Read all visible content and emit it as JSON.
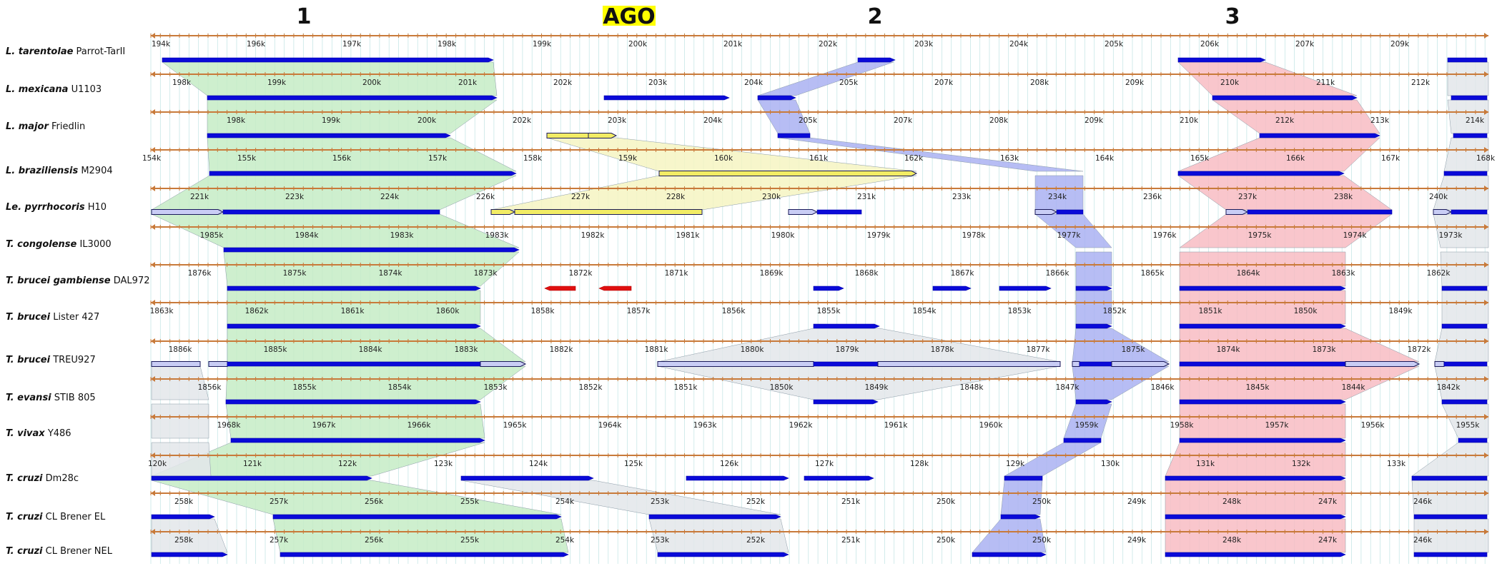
{
  "region_labels": [
    {
      "text": "1",
      "highlight": false
    },
    {
      "text": "AGO",
      "highlight": true
    },
    {
      "text": "2",
      "highlight": false
    },
    {
      "text": "3",
      "highlight": false
    }
  ],
  "colors": {
    "axis": "#c87a3a",
    "gene": "#0a0ad8",
    "gene_light": "#c9cdf5",
    "gene_yellow": "#f2ec64",
    "gene_red": "#e01010",
    "band_green": "#c6ecc6",
    "band_blue": "#aab2f2",
    "band_red": "#f8bcc3",
    "band_yellow": "#f6f4c2",
    "band_gray": "#e3e6ea",
    "grid": "#bfe3e3",
    "highlight": "#ffff00"
  },
  "tracks": [
    {
      "species": "L. tarentolae",
      "strain": "Parrot-TarII",
      "ticks": [
        "194k",
        "196k",
        "197k",
        "198k",
        "199k",
        "200k",
        "201k",
        "202k",
        "203k",
        "204k",
        "205k",
        "206k",
        "207k",
        "209k"
      ]
    },
    {
      "species": "L. mexicana",
      "strain": "U1103",
      "ticks": [
        "198k",
        "199k",
        "200k",
        "201k",
        "202k",
        "203k",
        "204k",
        "205k",
        "207k",
        "208k",
        "209k",
        "210k",
        "211k",
        "212k"
      ]
    },
    {
      "species": "L. major",
      "strain": "Friedlin",
      "ticks": [
        "198k",
        "199k",
        "200k",
        "202k",
        "203k",
        "204k",
        "205k",
        "207k",
        "208k",
        "209k",
        "210k",
        "212k",
        "213k",
        "214k"
      ]
    },
    {
      "species": "L. braziliensis",
      "strain": "M2904",
      "ticks": [
        "154k",
        "155k",
        "156k",
        "157k",
        "158k",
        "159k",
        "160k",
        "161k",
        "162k",
        "163k",
        "164k",
        "165k",
        "166k",
        "167k",
        "168k"
      ]
    },
    {
      "species": "Le. pyrrhocoris",
      "strain": "H10",
      "ticks": [
        "221k",
        "223k",
        "224k",
        "226k",
        "227k",
        "228k",
        "230k",
        "231k",
        "233k",
        "234k",
        "236k",
        "237k",
        "238k",
        "240k"
      ]
    },
    {
      "species": "T. congolense",
      "strain": "IL3000",
      "ticks": [
        "1985k",
        "1984k",
        "1983k",
        "1983k",
        "1982k",
        "1981k",
        "1980k",
        "1979k",
        "1978k",
        "1977k",
        "1976k",
        "1975k",
        "1974k",
        "1973k"
      ]
    },
    {
      "species": "T. brucei gambiense",
      "strain": "DAL972",
      "ticks": [
        "1876k",
        "1875k",
        "1874k",
        "1873k",
        "1872k",
        "1871k",
        "1869k",
        "1868k",
        "1867k",
        "1866k",
        "1865k",
        "1864k",
        "1863k",
        "1862k"
      ]
    },
    {
      "species": "T. brucei",
      "strain": "Lister 427",
      "ticks": [
        "1863k",
        "1862k",
        "1861k",
        "1860k",
        "1858k",
        "1857k",
        "1856k",
        "1855k",
        "1854k",
        "1853k",
        "1852k",
        "1851k",
        "1850k",
        "1849k"
      ]
    },
    {
      "species": "T. brucei",
      "strain": "TREU927",
      "ticks": [
        "1886k",
        "1885k",
        "1884k",
        "1883k",
        "1882k",
        "1881k",
        "1880k",
        "1879k",
        "1878k",
        "1877k",
        "1875k",
        "1874k",
        "1873k",
        "1872k"
      ]
    },
    {
      "species": "T. evansi",
      "strain": "STIB 805",
      "ticks": [
        "1856k",
        "1855k",
        "1854k",
        "1853k",
        "1852k",
        "1851k",
        "1850k",
        "1849k",
        "1848k",
        "1847k",
        "1846k",
        "1845k",
        "1844k",
        "1842k"
      ]
    },
    {
      "species": "T. vivax",
      "strain": "Y486",
      "ticks": [
        "1968k",
        "1967k",
        "1966k",
        "1965k",
        "1964k",
        "1963k",
        "1962k",
        "1961k",
        "1960k",
        "1959k",
        "1958k",
        "1957k",
        "1956k",
        "1955k"
      ]
    },
    {
      "species": "T. cruzi",
      "strain": "Dm28c",
      "ticks": [
        "120k",
        "121k",
        "122k",
        "123k",
        "124k",
        "125k",
        "126k",
        "127k",
        "128k",
        "129k",
        "130k",
        "131k",
        "132k",
        "133k"
      ]
    },
    {
      "species": "T. cruzi",
      "strain": "CL Brener EL",
      "ticks": [
        "258k",
        "257k",
        "256k",
        "255k",
        "254k",
        "253k",
        "252k",
        "251k",
        "250k",
        "250k",
        "249k",
        "248k",
        "247k",
        "246k"
      ]
    },
    {
      "species": "T. cruzi",
      "strain": "CL Brener NEL",
      "ticks": [
        "258k",
        "257k",
        "256k",
        "255k",
        "254k",
        "253k",
        "252k",
        "251k",
        "250k",
        "250k",
        "249k",
        "248k",
        "247k",
        "246k"
      ]
    }
  ]
}
